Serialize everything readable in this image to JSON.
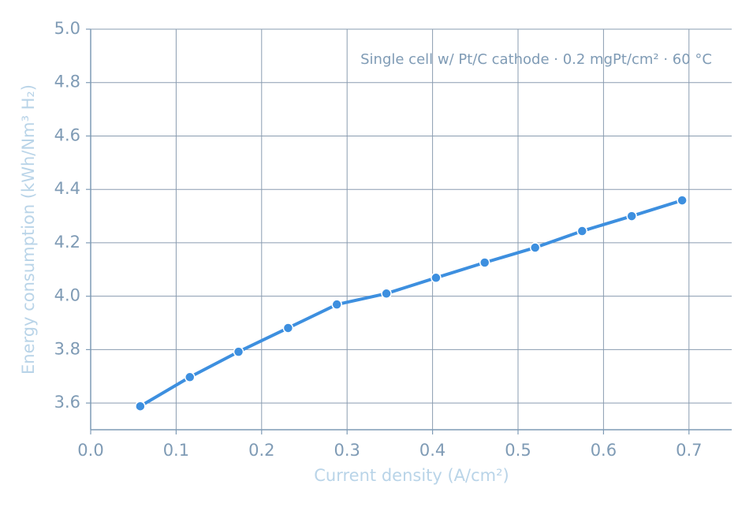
{
  "chart_data": {
    "type": "line",
    "annotation": "Single cell w/ Pt/C cathode · 0.2 mgPt/cm² · 60 °C",
    "x_label": "Current density (A/cm²)",
    "y_label": "Energy consumption (kWh/Nm³ H₂)",
    "x": [
      0.058,
      0.116,
      0.173,
      0.231,
      0.288,
      0.346,
      0.404,
      0.461,
      0.52,
      0.575,
      0.633,
      0.692
    ],
    "series": [
      {
        "color": "#3d8fdf",
        "values": [
          3.588,
          3.697,
          3.792,
          3.881,
          3.969,
          4.01,
          4.069,
          4.126,
          4.182,
          4.244,
          4.3,
          4.359
        ]
      }
    ],
    "xlim": [
      0,
      0.75
    ],
    "ylim": [
      3.5,
      5.0
    ],
    "xticks": [
      {
        "value": 0,
        "label": "0.0"
      },
      0.1,
      0.2,
      0.3,
      0.4,
      0.5,
      0.6,
      0.7
    ],
    "yticks": [
      3.6,
      3.8,
      {
        "value": 4.0,
        "label": "4.0"
      },
      4.2,
      4.4,
      4.6,
      4.8,
      {
        "value": 5.0,
        "label": "5.0"
      }
    ],
    "grid": true
  }
}
